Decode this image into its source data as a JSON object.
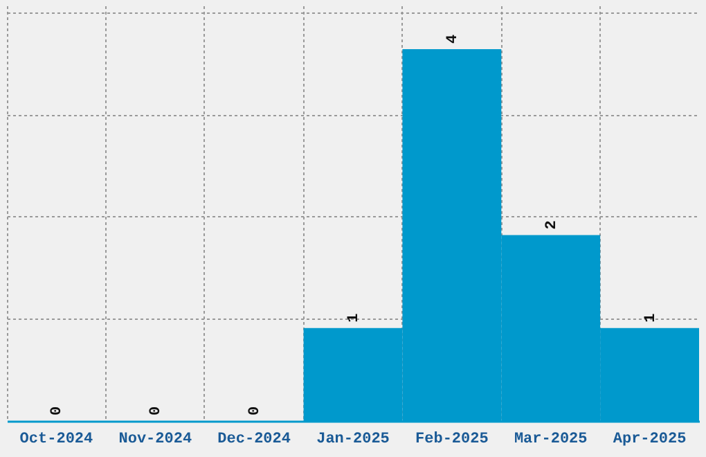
{
  "chart_data": {
    "type": "bar",
    "categories": [
      "Oct-2024",
      "Nov-2024",
      "Dec-2024",
      "Jan-2025",
      "Feb-2025",
      "Mar-2025",
      "Apr-2025"
    ],
    "values": [
      0,
      0,
      0,
      1,
      4,
      2,
      1
    ],
    "color": "#0099cc",
    "data_labels": true,
    "ylim": [
      0,
      4.47
    ],
    "yticks": [
      {
        "value": 1.1,
        "label": null
      },
      {
        "value": 2.2,
        "label": null
      },
      {
        "value": 3.3,
        "label": null
      },
      {
        "value": 4.4,
        "label": null
      }
    ],
    "tick_labels": "x",
    "grid": true
  }
}
